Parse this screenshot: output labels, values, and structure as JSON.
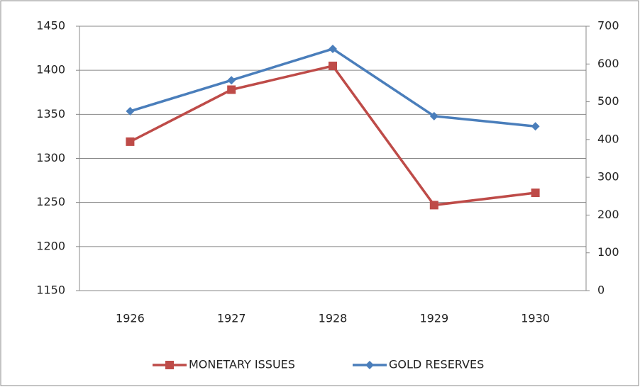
{
  "chart_data": {
    "type": "line",
    "categories": [
      "1926",
      "1927",
      "1928",
      "1929",
      "1930"
    ],
    "series": [
      {
        "name": "MONETARY ISSUES",
        "color": "#be4b48",
        "marker": "square",
        "values": [
          1319,
          1378,
          1405,
          1247,
          1261
        ]
      },
      {
        "name": "GOLD RESERVES",
        "color": "#4a7ebb",
        "marker": "diamond",
        "axis": "y2",
        "values": [
          475,
          557,
          640,
          462,
          435
        ]
      }
    ],
    "ylim": [
      1150,
      1450
    ],
    "yticks": [
      1150,
      1200,
      1250,
      1300,
      1350,
      1400,
      1450
    ],
    "y2lim": [
      0,
      700
    ],
    "y2ticks": [
      0,
      100,
      200,
      300,
      400,
      500,
      600,
      700
    ],
    "grid": true,
    "legend": "bottom"
  }
}
